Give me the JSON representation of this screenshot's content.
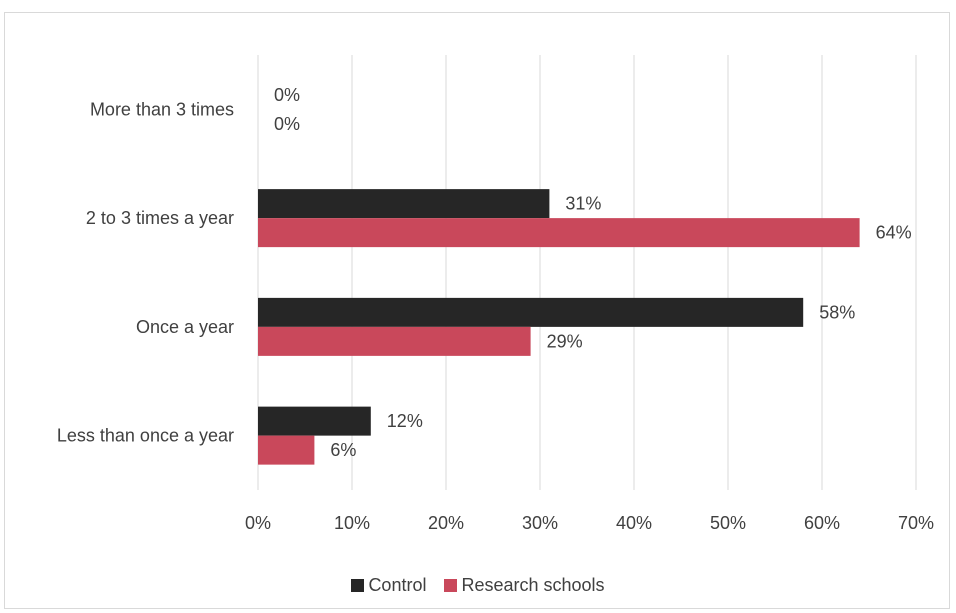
{
  "chart_data": {
    "type": "bar",
    "orientation": "horizontal",
    "categories": [
      "More than 3 times",
      "2 to 3 times a year",
      "Once a year",
      "Less than once a year"
    ],
    "series": [
      {
        "name": "Control",
        "values": [
          0,
          31,
          58,
          12
        ],
        "labels": [
          "0%",
          "31%",
          "58%",
          "12%"
        ],
        "color": "#262626"
      },
      {
        "name": "Research schools",
        "values": [
          0,
          64,
          29,
          6
        ],
        "labels": [
          "0%",
          "64%",
          "29%",
          "6%"
        ],
        "color": "#c9485b"
      }
    ],
    "xlim": [
      0,
      70
    ],
    "xticks": [
      0,
      10,
      20,
      30,
      40,
      50,
      60,
      70
    ],
    "xtick_labels": [
      "0%",
      "10%",
      "20%",
      "30%",
      "40%",
      "50%",
      "60%",
      "70%"
    ],
    "grid": true,
    "legend_position": "bottom"
  }
}
